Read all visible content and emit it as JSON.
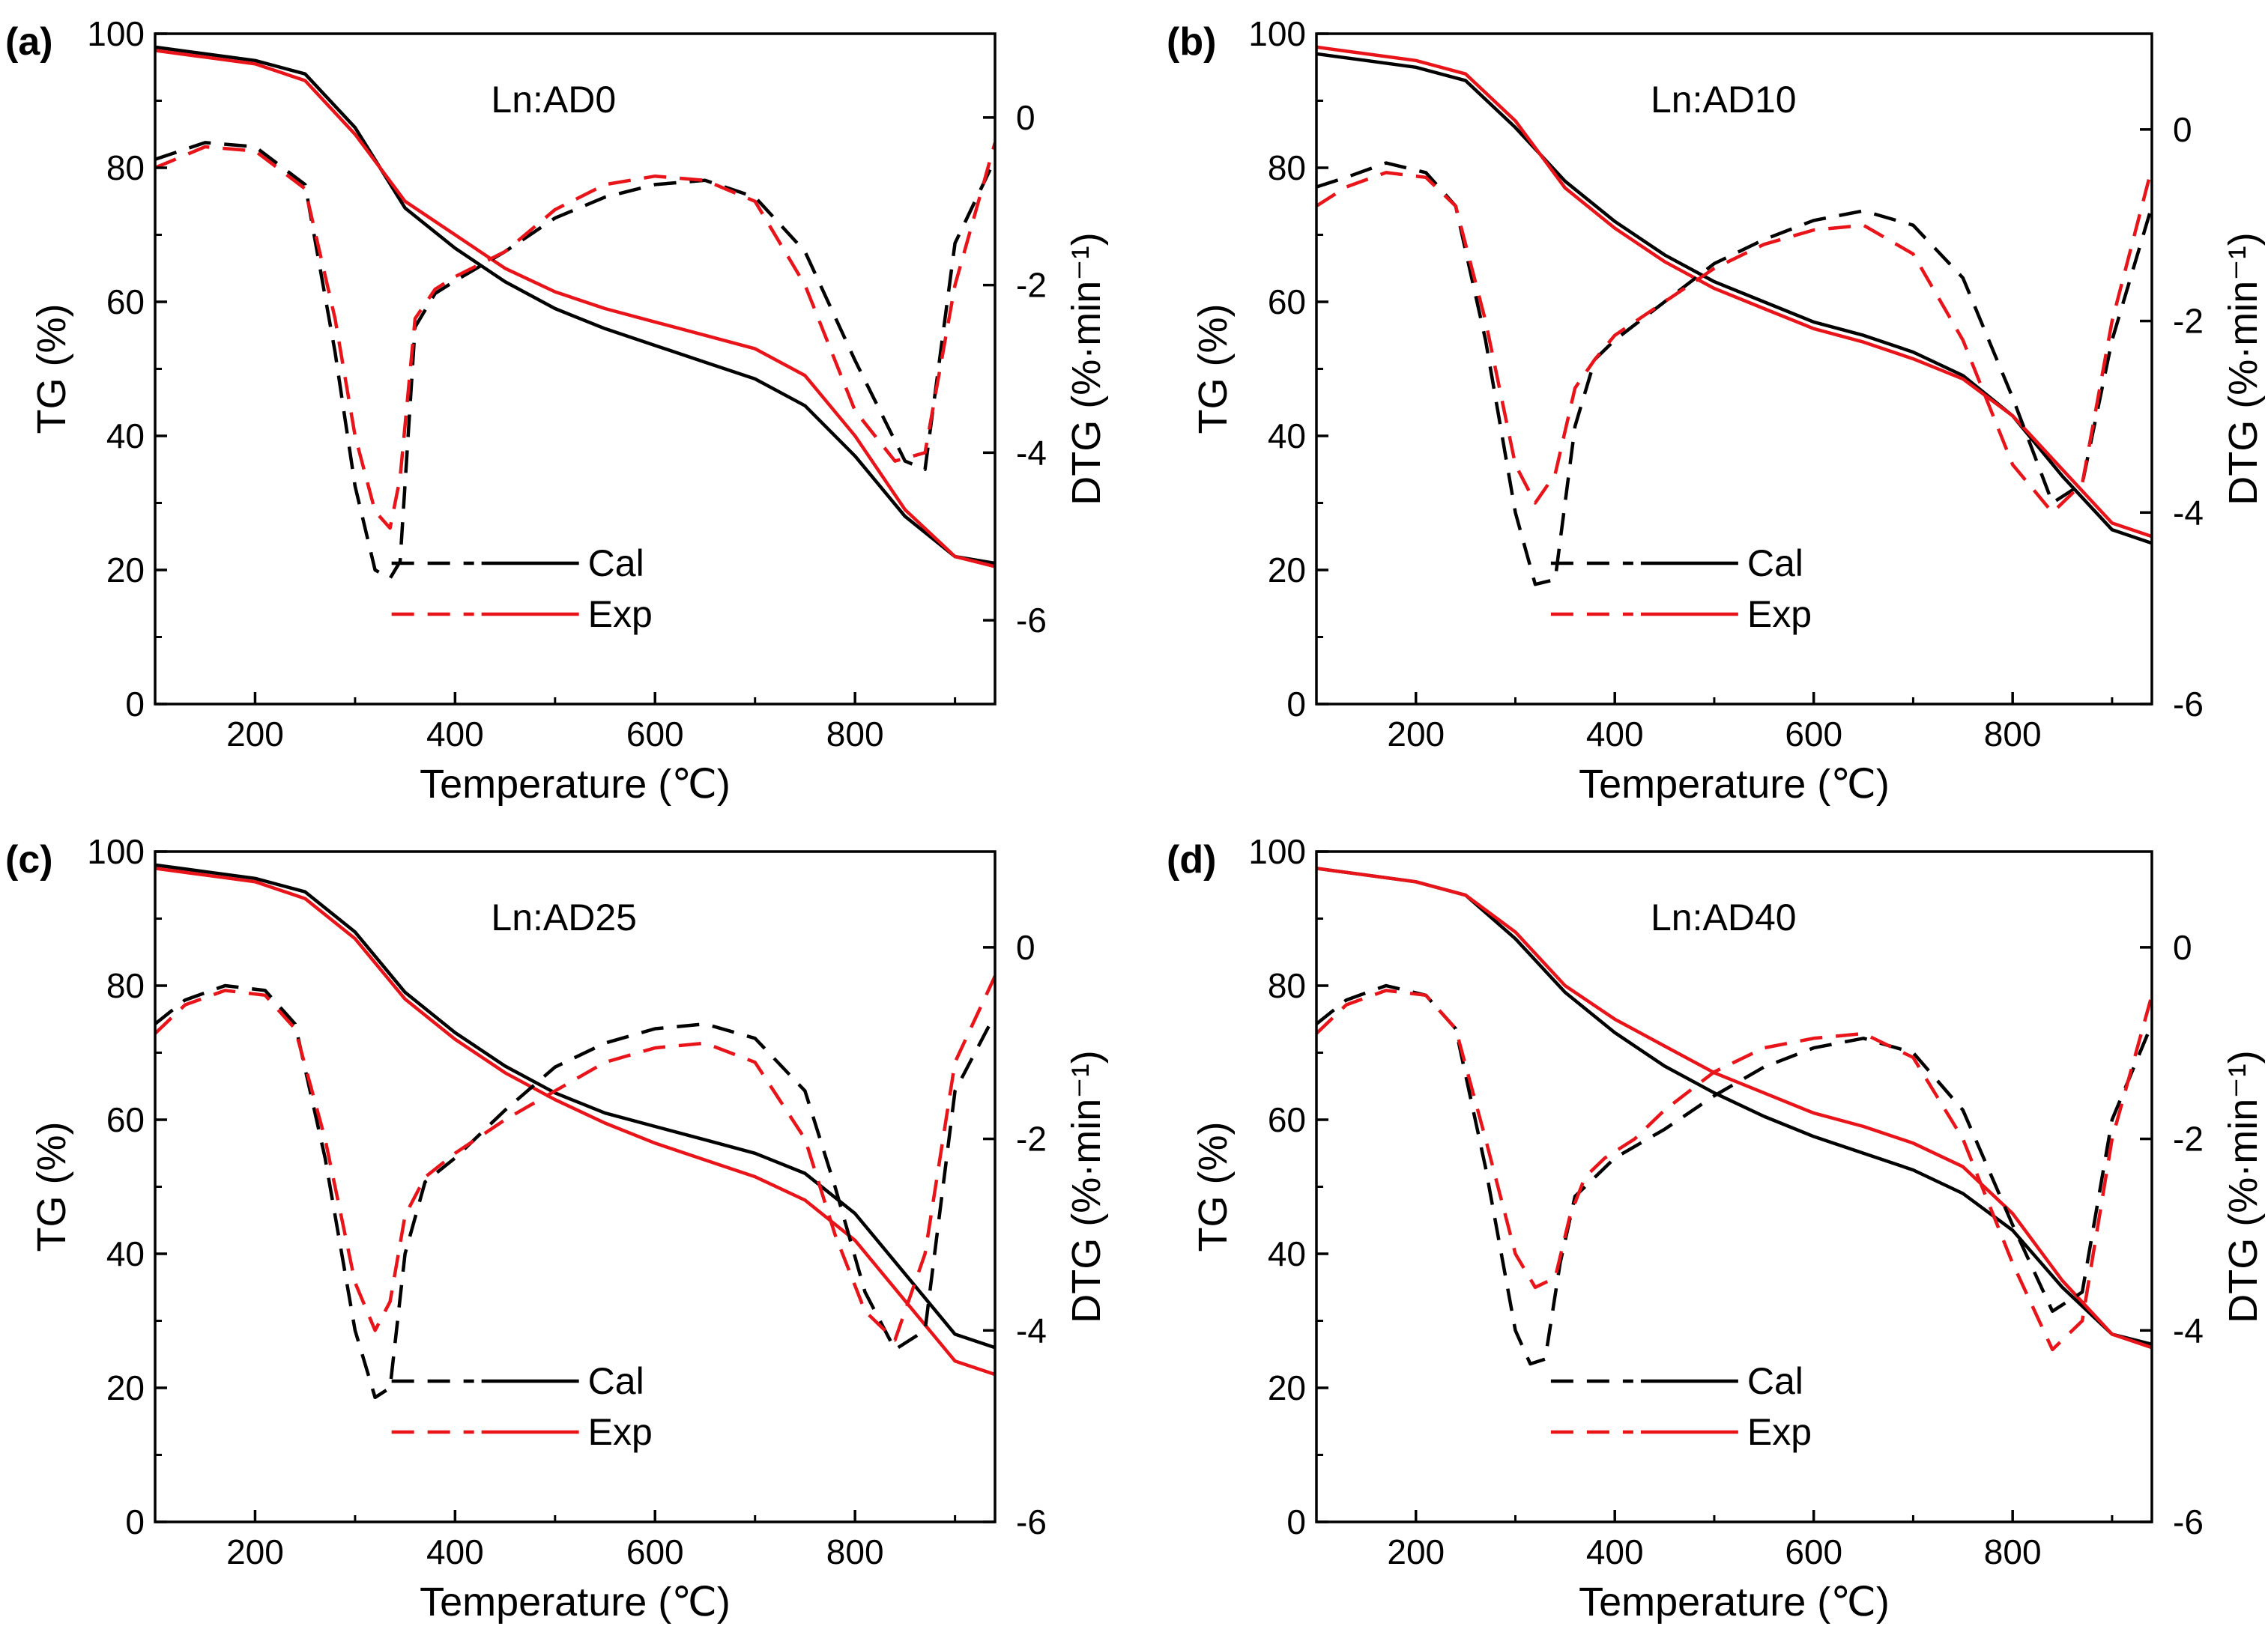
{
  "colors": {
    "cal": "#000000",
    "exp": "#e8141a"
  },
  "chart_data": [
    {
      "type": "line",
      "panel_label": "(a)",
      "title": "Ln:AD0",
      "xlabel": "Temperature (℃)",
      "ylabel": "TG (%)",
      "y2label": "DTG (%·min⁻¹)",
      "xlim": [
        100,
        940
      ],
      "ylim": [
        0,
        100
      ],
      "y2lim": [
        -7,
        1
      ],
      "xticks": [
        200,
        400,
        600,
        800
      ],
      "yticks": [
        0,
        20,
        40,
        60,
        80,
        100
      ],
      "y2ticks": [
        0,
        -2,
        -4,
        -6
      ],
      "legend": [
        "Cal",
        "Exp"
      ],
      "legend_position": "center-bottom",
      "series": [
        {
          "name": "Cal",
          "axis": "TG",
          "style": "solid",
          "x": [
            100,
            150,
            200,
            250,
            300,
            350,
            400,
            450,
            500,
            550,
            600,
            650,
            700,
            750,
            800,
            850,
            900,
            940
          ],
          "y": [
            98,
            97,
            96,
            94,
            86,
            74,
            68,
            63,
            59,
            56,
            53.5,
            51,
            48.5,
            44.5,
            37,
            28,
            22,
            21
          ]
        },
        {
          "name": "Exp",
          "axis": "TG",
          "style": "solid",
          "x": [
            100,
            150,
            200,
            250,
            300,
            350,
            400,
            450,
            500,
            550,
            600,
            650,
            700,
            750,
            800,
            850,
            900,
            940
          ],
          "y": [
            97.5,
            96.5,
            95.5,
            93,
            85,
            75,
            70,
            65,
            61.5,
            59,
            57,
            55,
            53,
            49,
            40,
            29,
            22,
            20.5
          ]
        },
        {
          "name": "Cal",
          "axis": "DTG",
          "style": "dashed",
          "x": [
            100,
            150,
            200,
            250,
            280,
            300,
            320,
            335,
            345,
            360,
            380,
            400,
            450,
            500,
            550,
            600,
            650,
            700,
            750,
            800,
            850,
            870,
            900,
            940
          ],
          "y": [
            -0.5,
            -0.3,
            -0.35,
            -0.8,
            -2.8,
            -4.4,
            -5.4,
            -5.5,
            -5.3,
            -2.5,
            -2.1,
            -1.95,
            -1.6,
            -1.2,
            -0.95,
            -0.8,
            -0.75,
            -0.95,
            -1.6,
            -2.9,
            -4.1,
            -4.2,
            -1.5,
            -0.5
          ]
        },
        {
          "name": "Exp",
          "axis": "DTG",
          "style": "dashed",
          "x": [
            100,
            150,
            200,
            250,
            280,
            300,
            320,
            335,
            345,
            360,
            380,
            400,
            450,
            500,
            550,
            600,
            650,
            700,
            750,
            800,
            840,
            870,
            900,
            940
          ],
          "y": [
            -0.6,
            -0.35,
            -0.4,
            -0.85,
            -2.4,
            -3.8,
            -4.7,
            -4.9,
            -4.3,
            -2.4,
            -2.05,
            -1.9,
            -1.6,
            -1.1,
            -0.8,
            -0.7,
            -0.75,
            -1.0,
            -2.0,
            -3.5,
            -4.1,
            -4.0,
            -2.0,
            -0.3
          ]
        }
      ]
    },
    {
      "type": "line",
      "panel_label": "(b)",
      "title": "Ln:AD10",
      "xlabel": "Temperature (℃)",
      "ylabel": "TG (%)",
      "y2label": "DTG (%·min⁻¹)",
      "xlim": [
        100,
        940
      ],
      "ylim": [
        0,
        100
      ],
      "y2lim": [
        -6,
        1
      ],
      "xticks": [
        200,
        400,
        600,
        800
      ],
      "yticks": [
        0,
        20,
        40,
        60,
        80,
        100
      ],
      "y2ticks": [
        0,
        -2,
        -4,
        -6
      ],
      "legend": [
        "Cal",
        "Exp"
      ],
      "legend_position": "center-bottom",
      "series": [
        {
          "name": "Cal",
          "axis": "TG",
          "style": "solid",
          "x": [
            100,
            150,
            200,
            250,
            300,
            350,
            400,
            450,
            500,
            550,
            600,
            650,
            700,
            750,
            800,
            850,
            900,
            940
          ],
          "y": [
            97,
            96,
            95,
            93,
            86,
            78,
            72,
            67,
            63,
            60,
            57,
            55,
            52.5,
            49,
            43,
            34,
            26,
            24
          ]
        },
        {
          "name": "Exp",
          "axis": "TG",
          "style": "solid",
          "x": [
            100,
            150,
            200,
            250,
            300,
            350,
            400,
            450,
            500,
            550,
            600,
            650,
            700,
            750,
            800,
            850,
            900,
            940
          ],
          "y": [
            98,
            97,
            96,
            94,
            87,
            77,
            71,
            66,
            62,
            59,
            56,
            54,
            51.5,
            48.5,
            43,
            35,
            27,
            25
          ]
        },
        {
          "name": "Cal",
          "axis": "DTG",
          "style": "dashed",
          "x": [
            100,
            130,
            170,
            210,
            240,
            270,
            300,
            320,
            340,
            360,
            380,
            400,
            450,
            500,
            550,
            600,
            650,
            700,
            750,
            800,
            840,
            870,
            900,
            940
          ],
          "y": [
            -0.6,
            -0.5,
            -0.35,
            -0.45,
            -0.8,
            -2.2,
            -4.0,
            -4.75,
            -4.7,
            -3.1,
            -2.4,
            -2.2,
            -1.8,
            -1.4,
            -1.15,
            -0.95,
            -0.85,
            -1.0,
            -1.55,
            -2.8,
            -3.9,
            -3.7,
            -2.2,
            -0.8
          ]
        },
        {
          "name": "Exp",
          "axis": "DTG",
          "style": "dashed",
          "x": [
            100,
            130,
            170,
            210,
            240,
            270,
            300,
            320,
            340,
            360,
            380,
            400,
            450,
            500,
            550,
            600,
            650,
            700,
            750,
            800,
            840,
            870,
            900,
            940
          ],
          "y": [
            -0.8,
            -0.6,
            -0.45,
            -0.5,
            -0.8,
            -2.0,
            -3.5,
            -3.9,
            -3.6,
            -2.7,
            -2.4,
            -2.15,
            -1.8,
            -1.45,
            -1.2,
            -1.05,
            -1.0,
            -1.3,
            -2.2,
            -3.5,
            -4.0,
            -3.7,
            -2.0,
            -0.4
          ]
        }
      ]
    },
    {
      "type": "line",
      "panel_label": "(c)",
      "title": "Ln:AD25",
      "xlabel": "Temperature (℃)",
      "ylabel": "TG (%)",
      "y2label": "DTG (%·min⁻¹)",
      "xlim": [
        100,
        940
      ],
      "ylim": [
        0,
        100
      ],
      "y2lim": [
        -6,
        1
      ],
      "xticks": [
        200,
        400,
        600,
        800
      ],
      "yticks": [
        0,
        20,
        40,
        60,
        80,
        100
      ],
      "y2ticks": [
        0,
        -2,
        -4,
        -6
      ],
      "legend": [
        "Cal",
        "Exp"
      ],
      "legend_position": "center-bottom",
      "series": [
        {
          "name": "Cal",
          "axis": "TG",
          "style": "solid",
          "x": [
            100,
            150,
            200,
            250,
            300,
            350,
            400,
            450,
            500,
            550,
            600,
            650,
            700,
            750,
            800,
            850,
            900,
            940
          ],
          "y": [
            98,
            97,
            96,
            94,
            88,
            79,
            73,
            68,
            64,
            61,
            59,
            57,
            55,
            52,
            46,
            37,
            28,
            26
          ]
        },
        {
          "name": "Exp",
          "axis": "TG",
          "style": "solid",
          "x": [
            100,
            150,
            200,
            250,
            300,
            350,
            400,
            450,
            500,
            550,
            600,
            650,
            700,
            750,
            800,
            850,
            900,
            940
          ],
          "y": [
            97.5,
            96.5,
            95.5,
            93,
            87,
            78,
            72,
            67,
            63,
            59.5,
            56.5,
            54,
            51.5,
            48,
            42,
            33,
            24,
            22
          ]
        },
        {
          "name": "Cal",
          "axis": "DTG",
          "style": "dashed",
          "x": [
            100,
            130,
            170,
            210,
            240,
            270,
            300,
            320,
            335,
            350,
            370,
            400,
            450,
            500,
            550,
            600,
            650,
            700,
            750,
            780,
            810,
            840,
            870,
            900,
            940
          ],
          "y": [
            -0.8,
            -0.55,
            -0.4,
            -0.45,
            -0.8,
            -2.2,
            -4.0,
            -4.7,
            -4.6,
            -3.2,
            -2.45,
            -2.2,
            -1.7,
            -1.25,
            -1.0,
            -0.85,
            -0.8,
            -0.95,
            -1.5,
            -2.5,
            -3.6,
            -4.2,
            -4.0,
            -1.5,
            -0.7
          ]
        },
        {
          "name": "Exp",
          "axis": "DTG",
          "style": "dashed",
          "x": [
            100,
            130,
            170,
            210,
            240,
            270,
            300,
            320,
            335,
            350,
            370,
            400,
            450,
            500,
            550,
            600,
            650,
            700,
            750,
            780,
            810,
            840,
            870,
            900,
            940
          ],
          "y": [
            -0.9,
            -0.6,
            -0.45,
            -0.5,
            -0.85,
            -2.0,
            -3.5,
            -4.0,
            -3.7,
            -2.8,
            -2.4,
            -2.15,
            -1.8,
            -1.5,
            -1.2,
            -1.05,
            -1.0,
            -1.2,
            -2.0,
            -3.0,
            -3.8,
            -4.1,
            -3.2,
            -1.2,
            -0.3
          ]
        }
      ]
    },
    {
      "type": "line",
      "panel_label": "(d)",
      "title": "Ln:AD40",
      "xlabel": "Temperature (℃)",
      "ylabel": "TG (%)",
      "y2label": "DTG (%·min⁻¹)",
      "xlim": [
        100,
        940
      ],
      "ylim": [
        0,
        100
      ],
      "y2lim": [
        -6,
        1
      ],
      "xticks": [
        200,
        400,
        600,
        800
      ],
      "yticks": [
        0,
        20,
        40,
        60,
        80,
        100
      ],
      "y2ticks": [
        0,
        -2,
        -4,
        -6
      ],
      "legend": [
        "Cal",
        "Exp"
      ],
      "legend_position": "center-bottom",
      "series": [
        {
          "name": "Cal",
          "axis": "TG",
          "style": "solid",
          "x": [
            100,
            150,
            200,
            250,
            300,
            350,
            400,
            450,
            500,
            550,
            600,
            650,
            700,
            750,
            800,
            850,
            900,
            940
          ],
          "y": [
            97.5,
            96.5,
            95.5,
            93.5,
            87,
            79,
            73,
            68,
            64,
            60.5,
            57.5,
            55,
            52.5,
            49,
            43.5,
            35,
            28,
            26.5
          ]
        },
        {
          "name": "Exp",
          "axis": "TG",
          "style": "solid",
          "x": [
            100,
            150,
            200,
            250,
            300,
            350,
            400,
            450,
            500,
            550,
            600,
            650,
            700,
            750,
            800,
            850,
            900,
            940
          ],
          "y": [
            97.5,
            96.5,
            95.5,
            93.5,
            88,
            80,
            75,
            71,
            67,
            64,
            61,
            59,
            56.5,
            53,
            46,
            36,
            28,
            26
          ]
        },
        {
          "name": "Cal",
          "axis": "DTG",
          "style": "dashed",
          "x": [
            100,
            130,
            170,
            210,
            240,
            270,
            300,
            315,
            330,
            345,
            360,
            380,
            400,
            450,
            500,
            550,
            600,
            650,
            700,
            750,
            800,
            840,
            870,
            900,
            940
          ],
          "y": [
            -0.8,
            -0.55,
            -0.4,
            -0.5,
            -0.85,
            -2.3,
            -4.0,
            -4.35,
            -4.3,
            -3.3,
            -2.6,
            -2.4,
            -2.2,
            -1.9,
            -1.55,
            -1.25,
            -1.05,
            -0.95,
            -1.1,
            -1.7,
            -2.9,
            -3.8,
            -3.6,
            -1.8,
            -0.8
          ]
        },
        {
          "name": "Exp",
          "axis": "DTG",
          "style": "dashed",
          "x": [
            100,
            130,
            170,
            210,
            240,
            270,
            300,
            320,
            340,
            355,
            370,
            390,
            420,
            450,
            500,
            550,
            600,
            650,
            700,
            750,
            800,
            840,
            870,
            900,
            940
          ],
          "y": [
            -0.9,
            -0.6,
            -0.45,
            -0.5,
            -0.85,
            -2.0,
            -3.2,
            -3.55,
            -3.45,
            -2.8,
            -2.4,
            -2.2,
            -2.0,
            -1.7,
            -1.3,
            -1.05,
            -0.95,
            -0.9,
            -1.15,
            -2.0,
            -3.3,
            -4.2,
            -3.9,
            -2.0,
            -0.5
          ]
        }
      ]
    }
  ]
}
